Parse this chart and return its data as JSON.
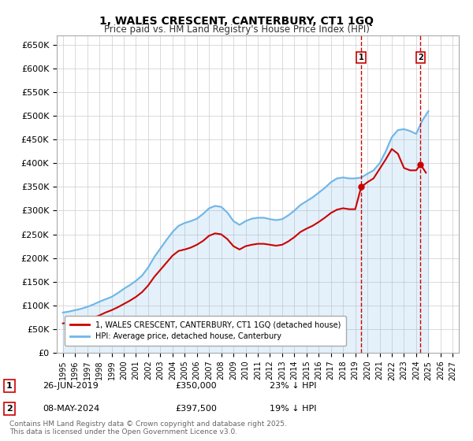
{
  "title": "1, WALES CRESCENT, CANTERBURY, CT1 1GQ",
  "subtitle": "Price paid vs. HM Land Registry's House Price Index (HPI)",
  "ylabel_ticks": [
    "£0",
    "£50K",
    "£100K",
    "£150K",
    "£200K",
    "£250K",
    "£300K",
    "£350K",
    "£400K",
    "£450K",
    "£500K",
    "£550K",
    "£600K",
    "£650K"
  ],
  "ytick_vals": [
    0,
    50000,
    100000,
    150000,
    200000,
    250000,
    300000,
    350000,
    400000,
    450000,
    500000,
    550000,
    600000,
    650000
  ],
  "ylim": [
    0,
    670000
  ],
  "xlim_start": 1994.5,
  "xlim_end": 2027.5,
  "hpi_color": "#6eb6e8",
  "price_color": "#cc0000",
  "vline_color": "#cc0000",
  "transaction1": {
    "date": 2019.49,
    "price": 350000,
    "label": "1",
    "text": "26-JUN-2019",
    "price_text": "£350,000",
    "pct_text": "23% ↓ HPI"
  },
  "transaction2": {
    "date": 2024.36,
    "price": 397500,
    "label": "2",
    "text": "08-MAY-2024",
    "price_text": "£397,500",
    "pct_text": "19% ↓ HPI"
  },
  "legend_line1": "1, WALES CRESCENT, CANTERBURY, CT1 1GQ (detached house)",
  "legend_line2": "HPI: Average price, detached house, Canterbury",
  "footer": "Contains HM Land Registry data © Crown copyright and database right 2025.\nThis data is licensed under the Open Government Licence v3.0.",
  "hpi_data_x": [
    1995.0,
    1995.5,
    1996.0,
    1996.5,
    1997.0,
    1997.5,
    1998.0,
    1998.5,
    1999.0,
    1999.5,
    2000.0,
    2000.5,
    2001.0,
    2001.5,
    2002.0,
    2002.5,
    2003.0,
    2003.5,
    2004.0,
    2004.5,
    2005.0,
    2005.5,
    2006.0,
    2006.5,
    2007.0,
    2007.5,
    2008.0,
    2008.5,
    2009.0,
    2009.5,
    2010.0,
    2010.5,
    2011.0,
    2011.5,
    2012.0,
    2012.5,
    2013.0,
    2013.5,
    2014.0,
    2014.5,
    2015.0,
    2015.5,
    2016.0,
    2016.5,
    2017.0,
    2017.5,
    2018.0,
    2018.5,
    2019.0,
    2019.5,
    2020.0,
    2020.5,
    2021.0,
    2021.5,
    2022.0,
    2022.5,
    2023.0,
    2023.5,
    2024.0,
    2024.5,
    2025.0
  ],
  "hpi_data_y": [
    85000,
    87000,
    90000,
    93000,
    97000,
    102000,
    108000,
    113000,
    118000,
    126000,
    135000,
    143000,
    152000,
    163000,
    180000,
    202000,
    220000,
    238000,
    255000,
    268000,
    274000,
    278000,
    283000,
    293000,
    305000,
    310000,
    308000,
    296000,
    278000,
    270000,
    278000,
    283000,
    285000,
    285000,
    282000,
    280000,
    282000,
    290000,
    300000,
    312000,
    320000,
    328000,
    338000,
    348000,
    360000,
    368000,
    370000,
    368000,
    368000,
    370000,
    378000,
    385000,
    400000,
    425000,
    455000,
    470000,
    472000,
    468000,
    462000,
    490000,
    510000
  ],
  "price_data_x": [
    1995.0,
    1995.3,
    1995.7,
    1996.0,
    1996.5,
    1997.0,
    1997.5,
    1998.0,
    1998.5,
    1999.0,
    1999.5,
    2000.0,
    2000.5,
    2001.0,
    2001.5,
    2002.0,
    2002.5,
    2003.0,
    2003.5,
    2004.0,
    2004.5,
    2005.0,
    2005.5,
    2006.0,
    2006.5,
    2007.0,
    2007.5,
    2008.0,
    2008.5,
    2009.0,
    2009.5,
    2010.0,
    2010.5,
    2011.0,
    2011.5,
    2012.0,
    2012.5,
    2013.0,
    2013.5,
    2014.0,
    2014.5,
    2015.0,
    2015.5,
    2016.0,
    2016.5,
    2017.0,
    2017.5,
    2018.0,
    2018.5,
    2019.0,
    2019.49,
    2020.0,
    2020.5,
    2021.0,
    2021.5,
    2022.0,
    2022.5,
    2023.0,
    2023.5,
    2024.0,
    2024.36,
    2024.8
  ],
  "price_data_y": [
    62000,
    63000,
    64000,
    65000,
    67000,
    70000,
    74000,
    79000,
    85000,
    90000,
    96000,
    103000,
    110000,
    118000,
    128000,
    142000,
    160000,
    175000,
    190000,
    205000,
    215000,
    218000,
    222000,
    228000,
    236000,
    247000,
    252000,
    250000,
    240000,
    225000,
    218000,
    225000,
    228000,
    230000,
    230000,
    228000,
    226000,
    228000,
    235000,
    244000,
    255000,
    262000,
    268000,
    276000,
    285000,
    295000,
    302000,
    305000,
    303000,
    303000,
    350000,
    360000,
    368000,
    388000,
    408000,
    430000,
    420000,
    390000,
    385000,
    385000,
    397500,
    380000
  ]
}
